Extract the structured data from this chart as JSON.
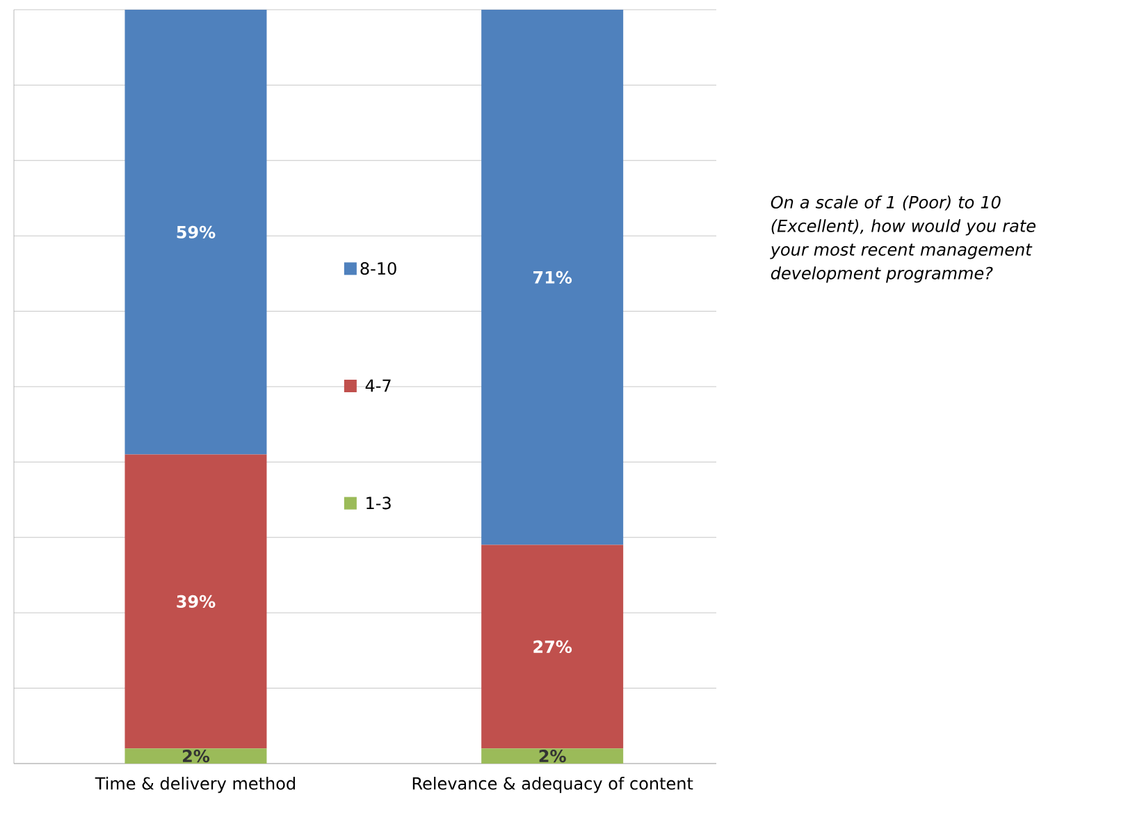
{
  "chart_data": {
    "type": "bar",
    "stacked": true,
    "categories": [
      "Time & delivery method",
      "Relevance & adequacy of content"
    ],
    "series": [
      {
        "name": "1-3",
        "color": "#9bbb59",
        "values": [
          2,
          2
        ],
        "value_labels": [
          "2%",
          "2%"
        ]
      },
      {
        "name": "4-7",
        "color": "#c0504d",
        "values": [
          39,
          27
        ],
        "value_labels": [
          "39%",
          "27%"
        ]
      },
      {
        "name": "8-10",
        "color": "#4f81bd",
        "values": [
          59,
          71
        ],
        "value_labels": [
          "59%",
          "71%"
        ]
      }
    ],
    "ylim": [
      0,
      100
    ],
    "yticks": [
      {
        "value": 0,
        "label": null
      },
      {
        "value": 10,
        "label": null
      },
      {
        "value": 20,
        "label": null
      },
      {
        "value": 30,
        "label": null
      },
      {
        "value": 40,
        "label": null
      },
      {
        "value": 50,
        "label": null
      },
      {
        "value": 60,
        "label": null
      },
      {
        "value": 70,
        "label": null
      },
      {
        "value": 80,
        "label": null
      },
      {
        "value": 90,
        "label": null
      },
      {
        "value": 100,
        "label": null
      }
    ],
    "tick_labels": "x",
    "grid": "y",
    "legend": "center",
    "annotations": [
      "On a scale of 1 (Poor) to 10 (Excellent), how would you rate your most recent management development programme?"
    ]
  }
}
